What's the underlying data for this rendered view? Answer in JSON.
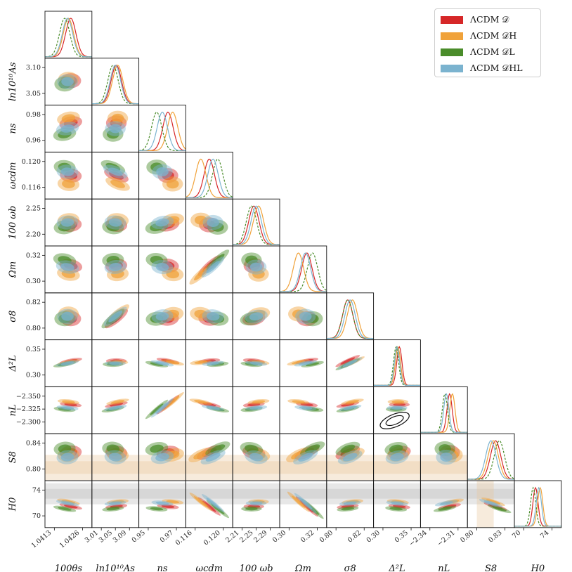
{
  "chart_data": {
    "type": "corner",
    "title": "",
    "parameters": [
      {
        "label": "100θs",
        "ticks": [
          "1.0413",
          "1.0426"
        ]
      },
      {
        "label": "ln10¹⁰As",
        "ticks": [
          "3.01",
          "3.05",
          "3.09"
        ],
        "yticks": [
          "3.05",
          "3.10"
        ]
      },
      {
        "label": "ns",
        "ticks": [
          "0.95",
          "0.97"
        ],
        "yticks": [
          "0.96",
          "0.98"
        ]
      },
      {
        "label": "ωcdm",
        "ticks": [
          "0.116",
          "0.120"
        ],
        "yticks": [
          "0.116",
          "0.120"
        ]
      },
      {
        "label": "100 ωb",
        "ticks": [
          "2.21",
          "2.25",
          "2.29"
        ],
        "yticks": [
          "2.20",
          "2.25"
        ]
      },
      {
        "label": "Ωm",
        "ticks": [
          "0.30",
          "0.32"
        ],
        "yticks": [
          "0.30",
          "0.32"
        ]
      },
      {
        "label": "σ8",
        "ticks": [
          "0.80",
          "0.82"
        ],
        "yticks": [
          "0.80",
          "0.82"
        ]
      },
      {
        "label": "Δ²L",
        "ticks": [
          "0.30",
          "0.35"
        ],
        "yticks": [
          "0.30",
          "0.35"
        ]
      },
      {
        "label": "nL",
        "ticks": [
          "−2.34",
          "−2.31"
        ],
        "yticks": [
          "−2.300",
          "−2.325",
          "−2.350"
        ]
      },
      {
        "label": "S8",
        "ticks": [
          "0.80",
          "0.83"
        ],
        "yticks": [
          "0.80",
          "0.84"
        ]
      },
      {
        "label": "H0",
        "ticks": [
          "70",
          "74"
        ],
        "yticks": [
          "70",
          "74"
        ]
      }
    ],
    "series": [
      {
        "name": "ΛCDM 𝒟",
        "color": "#d62728",
        "means": [
          0.55,
          0.52,
          0.62,
          0.5,
          0.45,
          0.58,
          0.45,
          0.55,
          0.62,
          0.6,
          0.45
        ]
      },
      {
        "name": "ΛCDM 𝒟H",
        "color": "#f0a23a",
        "means": [
          0.5,
          0.55,
          0.72,
          0.32,
          0.55,
          0.4,
          0.55,
          0.52,
          0.68,
          0.55,
          0.55
        ]
      },
      {
        "name": "ΛCDM 𝒟L",
        "color": "#4a8c2a",
        "means": [
          0.42,
          0.45,
          0.38,
          0.68,
          0.4,
          0.7,
          0.45,
          0.48,
          0.52,
          0.68,
          0.4
        ]
      },
      {
        "name": "ΛCDM 𝒟HL",
        "color": "#7bb3cf",
        "means": [
          0.48,
          0.5,
          0.5,
          0.58,
          0.5,
          0.55,
          0.5,
          0.5,
          0.55,
          0.5,
          0.52
        ]
      }
    ],
    "legend": {
      "position": "top-right",
      "entries": [
        "ΛCDM 𝒟",
        "ΛCDM 𝒟H",
        "ΛCDM 𝒟L",
        "ΛCDM 𝒟HL"
      ]
    },
    "bands": {
      "S8": {
        "color": "#e9c79b",
        "ymid": 0.804
      },
      "H0": {
        "color": "#b9b9b9",
        "ymid": 73.0
      }
    },
    "dashed_curve_series": "ΛCDM 𝒟L"
  }
}
